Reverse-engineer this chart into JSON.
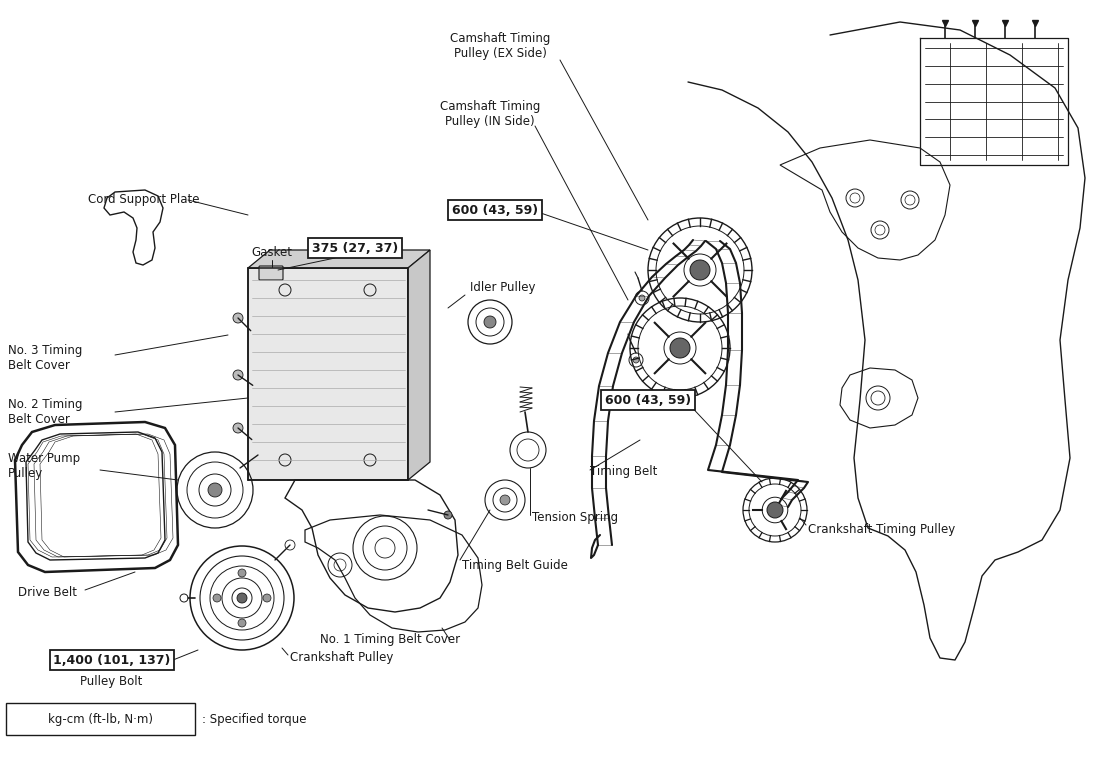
{
  "bg_color": "#ffffff",
  "line_color": "#1a1a1a",
  "text_color": "#1a1a1a",
  "box_fill": "#ffffff",
  "box_edge": "#1a1a1a",
  "labels": {
    "cord_support_plate": "Cord Support Plate",
    "gasket": "Gasket",
    "no3_timing_belt_cover": "No. 3 Timing\nBelt Cover",
    "no2_timing_belt_cover": "No. 2 Timing\nBelt Cover",
    "water_pump_pulley": "Water Pump\nPulley",
    "drive_belt": "Drive Belt",
    "no1_timing_belt_cover": "No. 1 Timing Belt Cover",
    "crankshaft_pulley": "Crankshaft Pulley",
    "pulley_bolt": "Pulley Bolt",
    "torque_label": "1,400 (101, 137)",
    "idler_pulley": "Idler Pulley",
    "timing_belt": "Timing Belt",
    "tension_spring": "Tension Spring",
    "timing_belt_guide": "Timing Belt Guide",
    "camshaft_ex": "Camshaft Timing\nPulley (EX Side)",
    "camshaft_in": "Camshaft Timing\nPulley (IN Side)",
    "torque_cam1": "600 (43, 59)",
    "torque_cam2": "600 (43, 59)",
    "torque_gasket": "375 (27, 37)",
    "crankshaft_timing_pulley": "Crankshaft Timing Pulley",
    "specified_torque": ": Specified torque",
    "torque_unit": "kg-cm (ft-lb, N·m)"
  }
}
